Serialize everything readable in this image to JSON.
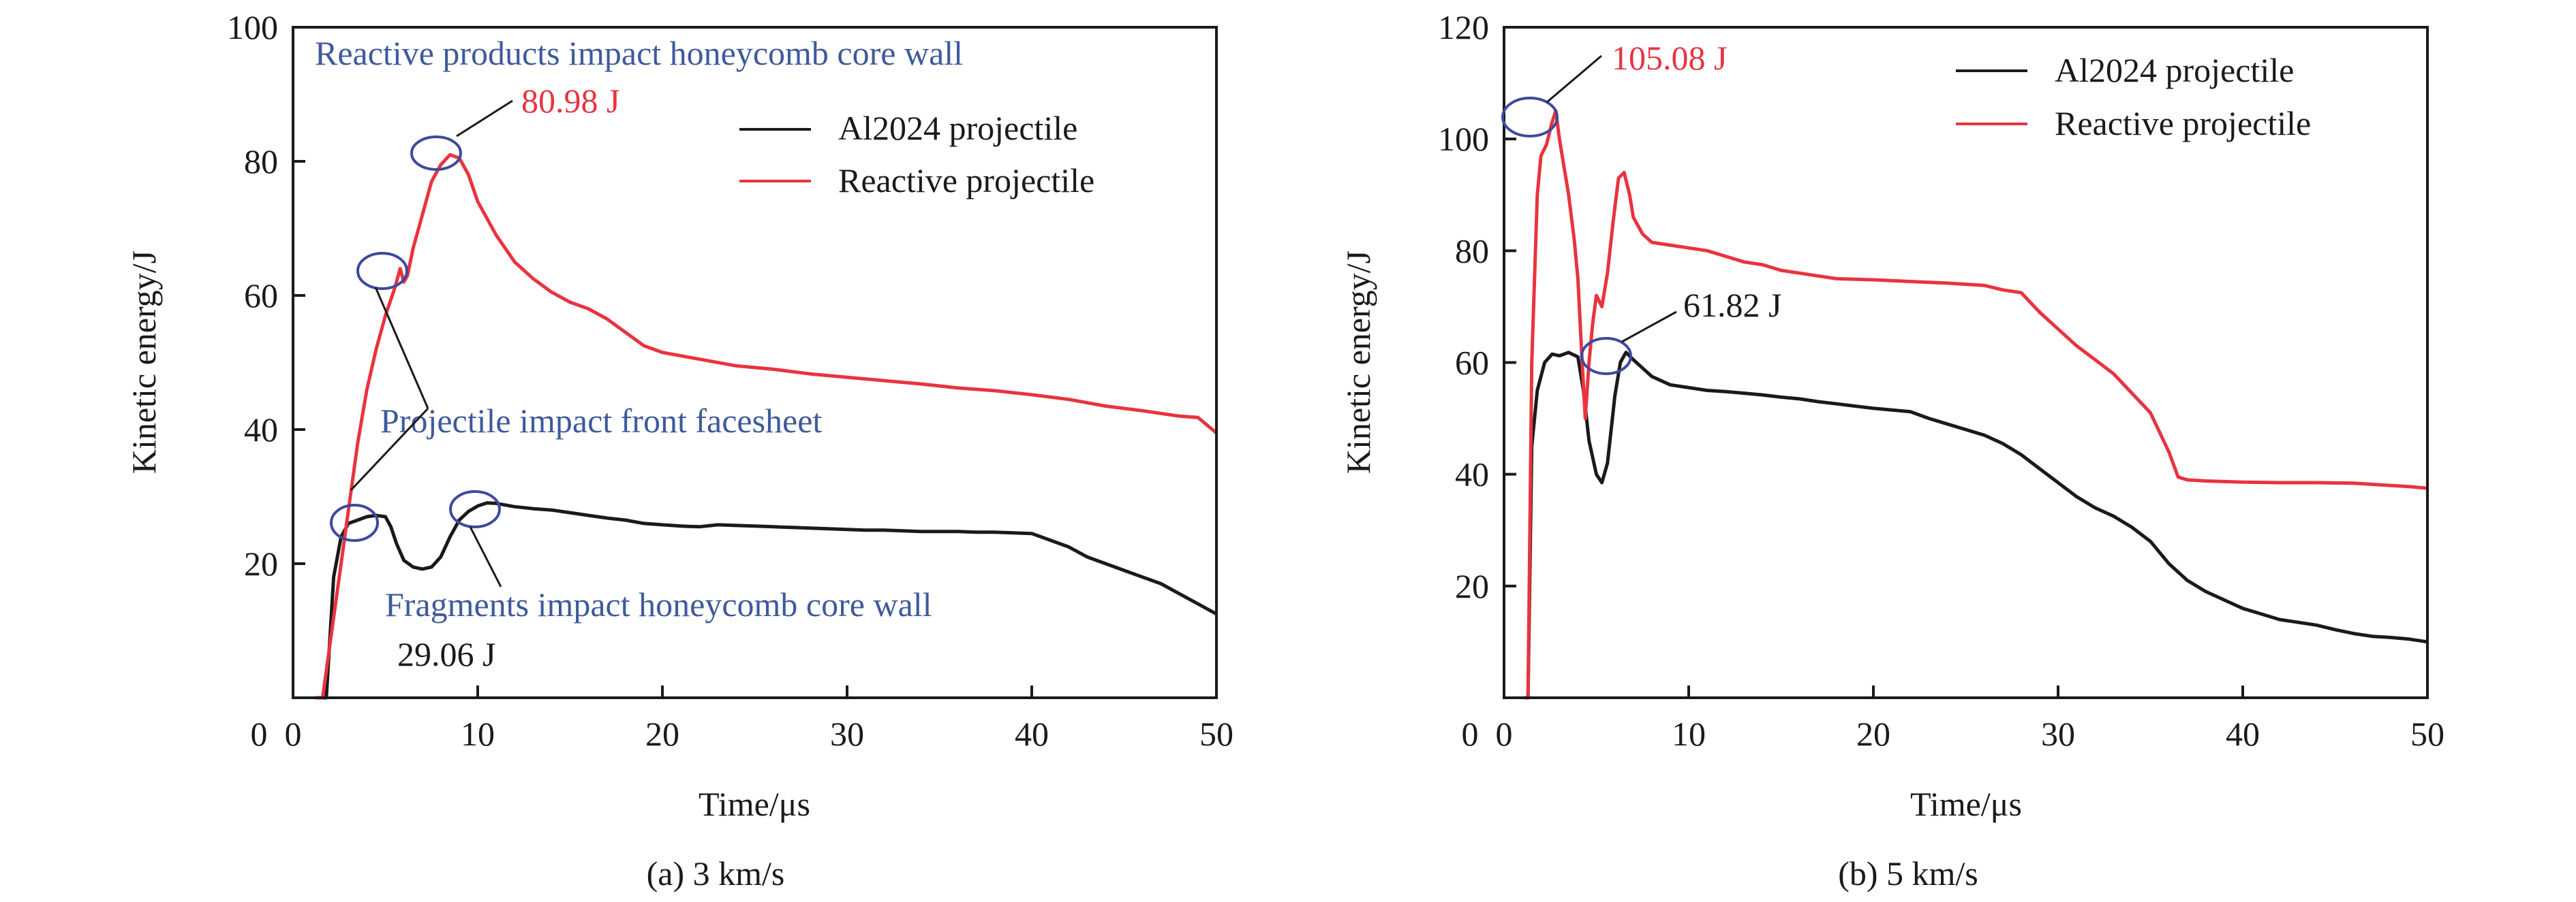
{
  "figure": {
    "colors": {
      "al2024": "#1a1a1a",
      "reactive": "#e8343f",
      "annotation": "#3e5a9b",
      "circle": "#3d4a9c",
      "value_red": "#e8343f",
      "value_black": "#1a1a1a"
    }
  },
  "chart_data": [
    {
      "type": "line",
      "caption": "(a) 3 km/s",
      "xlabel": "Time/μs",
      "ylabel": "Kinetic energy/J",
      "xlim": [
        0,
        50
      ],
      "ylim": [
        0,
        100
      ],
      "xticks": [
        0,
        10,
        20,
        30,
        40,
        50
      ],
      "yticks": [
        20,
        40,
        60,
        80,
        100
      ],
      "ytick_zero_label": "0",
      "grid": false,
      "legend_position": "top-right",
      "series": [
        {
          "name": "Al2024 projectile",
          "color": "#1a1a1a",
          "points": [
            [
              1.2,
              0
            ],
            [
              1.8,
              0
            ],
            [
              2.2,
              18
            ],
            [
              2.6,
              24
            ],
            [
              3.0,
              26
            ],
            [
              3.5,
              26.5
            ],
            [
              4.0,
              27
            ],
            [
              4.5,
              27.2
            ],
            [
              5.0,
              27
            ],
            [
              5.3,
              25.5
            ],
            [
              5.6,
              23
            ],
            [
              6.0,
              20.5
            ],
            [
              6.5,
              19.5
            ],
            [
              7.0,
              19.2
            ],
            [
              7.5,
              19.5
            ],
            [
              8.0,
              21
            ],
            [
              8.5,
              24
            ],
            [
              9.0,
              26.5
            ],
            [
              9.5,
              27.8
            ],
            [
              10.0,
              28.6
            ],
            [
              10.5,
              29.06
            ],
            [
              11.0,
              29
            ],
            [
              12,
              28.5
            ],
            [
              13,
              28.2
            ],
            [
              14,
              28
            ],
            [
              15,
              27.6
            ],
            [
              16,
              27.2
            ],
            [
              17,
              26.8
            ],
            [
              18,
              26.5
            ],
            [
              19,
              26
            ],
            [
              20,
              25.8
            ],
            [
              21,
              25.6
            ],
            [
              22,
              25.5
            ],
            [
              23,
              25.8
            ],
            [
              24,
              25.7
            ],
            [
              25,
              25.6
            ],
            [
              26,
              25.5
            ],
            [
              27,
              25.4
            ],
            [
              28,
              25.3
            ],
            [
              29,
              25.2
            ],
            [
              30,
              25.1
            ],
            [
              31,
              25
            ],
            [
              32,
              25
            ],
            [
              33,
              24.9
            ],
            [
              34,
              24.8
            ],
            [
              35,
              24.8
            ],
            [
              36,
              24.8
            ],
            [
              37,
              24.7
            ],
            [
              38,
              24.7
            ],
            [
              39,
              24.6
            ],
            [
              40,
              24.5
            ],
            [
              41,
              23.5
            ],
            [
              42,
              22.5
            ],
            [
              43,
              21
            ],
            [
              44,
              20
            ],
            [
              45,
              19
            ],
            [
              46,
              18
            ],
            [
              47,
              17
            ],
            [
              48,
              15.5
            ],
            [
              49,
              14
            ],
            [
              50,
              12.5
            ]
          ]
        },
        {
          "name": "Reactive projectile",
          "color": "#e8343f",
          "points": [
            [
              1.2,
              0
            ],
            [
              1.6,
              0
            ],
            [
              2.0,
              8
            ],
            [
              2.5,
              18
            ],
            [
              3.0,
              28
            ],
            [
              3.5,
              38
            ],
            [
              4.0,
              46
            ],
            [
              4.5,
              52
            ],
            [
              5.0,
              57
            ],
            [
              5.5,
              61
            ],
            [
              5.8,
              64
            ],
            [
              6.0,
              62
            ],
            [
              6.2,
              63
            ],
            [
              6.5,
              67
            ],
            [
              7.0,
              72
            ],
            [
              7.5,
              77
            ],
            [
              8.0,
              79.5
            ],
            [
              8.5,
              80.98
            ],
            [
              9.0,
              80.5
            ],
            [
              9.5,
              78
            ],
            [
              10,
              74
            ],
            [
              11,
              69
            ],
            [
              12,
              65
            ],
            [
              13,
              62.5
            ],
            [
              14,
              60.5
            ],
            [
              15,
              59
            ],
            [
              16,
              58
            ],
            [
              17,
              56.5
            ],
            [
              18,
              54.5
            ],
            [
              19,
              52.5
            ],
            [
              20,
              51.5
            ],
            [
              22,
              50.5
            ],
            [
              24,
              49.5
            ],
            [
              26,
              49
            ],
            [
              28,
              48.3
            ],
            [
              30,
              47.8
            ],
            [
              32,
              47.3
            ],
            [
              34,
              46.8
            ],
            [
              36,
              46.2
            ],
            [
              38,
              45.8
            ],
            [
              40,
              45.2
            ],
            [
              42,
              44.5
            ],
            [
              44,
              43.5
            ],
            [
              46,
              42.8
            ],
            [
              48,
              42
            ],
            [
              49,
              41.8
            ],
            [
              50,
              39.5
            ]
          ]
        }
      ],
      "annotations": [
        {
          "text": "Reactive products impact honeycomb core wall",
          "color": "#3e5a9b"
        },
        {
          "text": "80.98 J",
          "color": "#e8343f",
          "target": [
            8.6,
            80.98
          ]
        },
        {
          "text": "Projectile impact front facesheet",
          "color": "#3e5a9b",
          "targets": [
            [
              5.9,
              63.5
            ],
            [
              4.5,
              27
            ]
          ]
        },
        {
          "text": "Fragments impact honeycomb core wall",
          "color": "#3e5a9b",
          "target": [
            10.5,
            28.6
          ]
        },
        {
          "text": "29.06 J",
          "color": "#1a1a1a"
        }
      ]
    },
    {
      "type": "line",
      "caption": "(b) 5 km/s",
      "xlabel": "Time/μs",
      "ylabel": "Kinetic energy/J",
      "xlim": [
        0,
        50
      ],
      "ylim": [
        0,
        120
      ],
      "xticks": [
        0,
        10,
        20,
        30,
        40,
        50
      ],
      "yticks": [
        20,
        40,
        60,
        80,
        100,
        120
      ],
      "ytick_zero_label": "0",
      "grid": false,
      "legend_position": "top-right",
      "series": [
        {
          "name": "Al2024 projectile",
          "color": "#1a1a1a",
          "points": [
            [
              1.1,
              0
            ],
            [
              1.3,
              0
            ],
            [
              1.5,
              45
            ],
            [
              1.8,
              55
            ],
            [
              2.2,
              60
            ],
            [
              2.6,
              61.5
            ],
            [
              3.0,
              61.2
            ],
            [
              3.5,
              61.8
            ],
            [
              4.0,
              61
            ],
            [
              4.3,
              55
            ],
            [
              4.6,
              46
            ],
            [
              5.0,
              40
            ],
            [
              5.3,
              38.5
            ],
            [
              5.6,
              42
            ],
            [
              6.0,
              54
            ],
            [
              6.3,
              60
            ],
            [
              6.6,
              61.82
            ],
            [
              7.0,
              60.5
            ],
            [
              7.5,
              59
            ],
            [
              8,
              57.5
            ],
            [
              9,
              56
            ],
            [
              10,
              55.5
            ],
            [
              11,
              55
            ],
            [
              12,
              54.8
            ],
            [
              13,
              54.5
            ],
            [
              14,
              54.2
            ],
            [
              15,
              53.8
            ],
            [
              16,
              53.5
            ],
            [
              17,
              53
            ],
            [
              18,
              52.6
            ],
            [
              19,
              52.2
            ],
            [
              20,
              51.8
            ],
            [
              21,
              51.5
            ],
            [
              22,
              51.2
            ],
            [
              23,
              50
            ],
            [
              24,
              49
            ],
            [
              25,
              48
            ],
            [
              26,
              47
            ],
            [
              27,
              45.5
            ],
            [
              28,
              43.5
            ],
            [
              29,
              41
            ],
            [
              30,
              38.5
            ],
            [
              31,
              36
            ],
            [
              32,
              34
            ],
            [
              33,
              32.5
            ],
            [
              34,
              30.5
            ],
            [
              35,
              28
            ],
            [
              36,
              24
            ],
            [
              37,
              21
            ],
            [
              38,
              19
            ],
            [
              39,
              17.5
            ],
            [
              40,
              16
            ],
            [
              41,
              15
            ],
            [
              42,
              14
            ],
            [
              43,
              13.5
            ],
            [
              44,
              13
            ],
            [
              45,
              12.2
            ],
            [
              46,
              11.5
            ],
            [
              47,
              11
            ],
            [
              48,
              10.8
            ],
            [
              49,
              10.5
            ],
            [
              50,
              10
            ]
          ]
        },
        {
          "name": "Reactive projectile",
          "color": "#e8343f",
          "points": [
            [
              1.1,
              0
            ],
            [
              1.3,
              0
            ],
            [
              1.5,
              60
            ],
            [
              1.8,
              90
            ],
            [
              2.0,
              97
            ],
            [
              2.3,
              99
            ],
            [
              2.6,
              103
            ],
            [
              2.8,
              105.08
            ],
            [
              3.0,
              100
            ],
            [
              3.2,
              96
            ],
            [
              3.5,
              90
            ],
            [
              3.8,
              82
            ],
            [
              4.0,
              75
            ],
            [
              4.2,
              62
            ],
            [
              4.4,
              50
            ],
            [
              4.6,
              60
            ],
            [
              4.8,
              67
            ],
            [
              5.0,
              72
            ],
            [
              5.3,
              70
            ],
            [
              5.6,
              76
            ],
            [
              5.9,
              85
            ],
            [
              6.2,
              93
            ],
            [
              6.5,
              94
            ],
            [
              6.8,
              90
            ],
            [
              7.0,
              86
            ],
            [
              7.5,
              83
            ],
            [
              8,
              81.5
            ],
            [
              9,
              81
            ],
            [
              10,
              80.5
            ],
            [
              11,
              80
            ],
            [
              12,
              79
            ],
            [
              13,
              78
            ],
            [
              14,
              77.5
            ],
            [
              15,
              76.5
            ],
            [
              16,
              76
            ],
            [
              17,
              75.5
            ],
            [
              18,
              75
            ],
            [
              20,
              74.8
            ],
            [
              22,
              74.5
            ],
            [
              24,
              74.2
            ],
            [
              26,
              73.8
            ],
            [
              27,
              73
            ],
            [
              28,
              72.5
            ],
            [
              29,
              69
            ],
            [
              30,
              66
            ],
            [
              31,
              63
            ],
            [
              32,
              60.5
            ],
            [
              33,
              58
            ],
            [
              34,
              54.5
            ],
            [
              35,
              51
            ],
            [
              36,
              44
            ],
            [
              36.5,
              39.5
            ],
            [
              37,
              39
            ],
            [
              38,
              38.8
            ],
            [
              40,
              38.6
            ],
            [
              42,
              38.5
            ],
            [
              44,
              38.5
            ],
            [
              46,
              38.4
            ],
            [
              48,
              38
            ],
            [
              49,
              37.8
            ],
            [
              50,
              37.5
            ]
          ]
        }
      ],
      "annotations": [
        {
          "text": "105.08 J",
          "color": "#e8343f",
          "target": [
            2.8,
            105.08
          ]
        },
        {
          "text": "61.82 J",
          "color": "#1a1a1a",
          "target": [
            6.6,
            61.82
          ]
        }
      ]
    }
  ]
}
